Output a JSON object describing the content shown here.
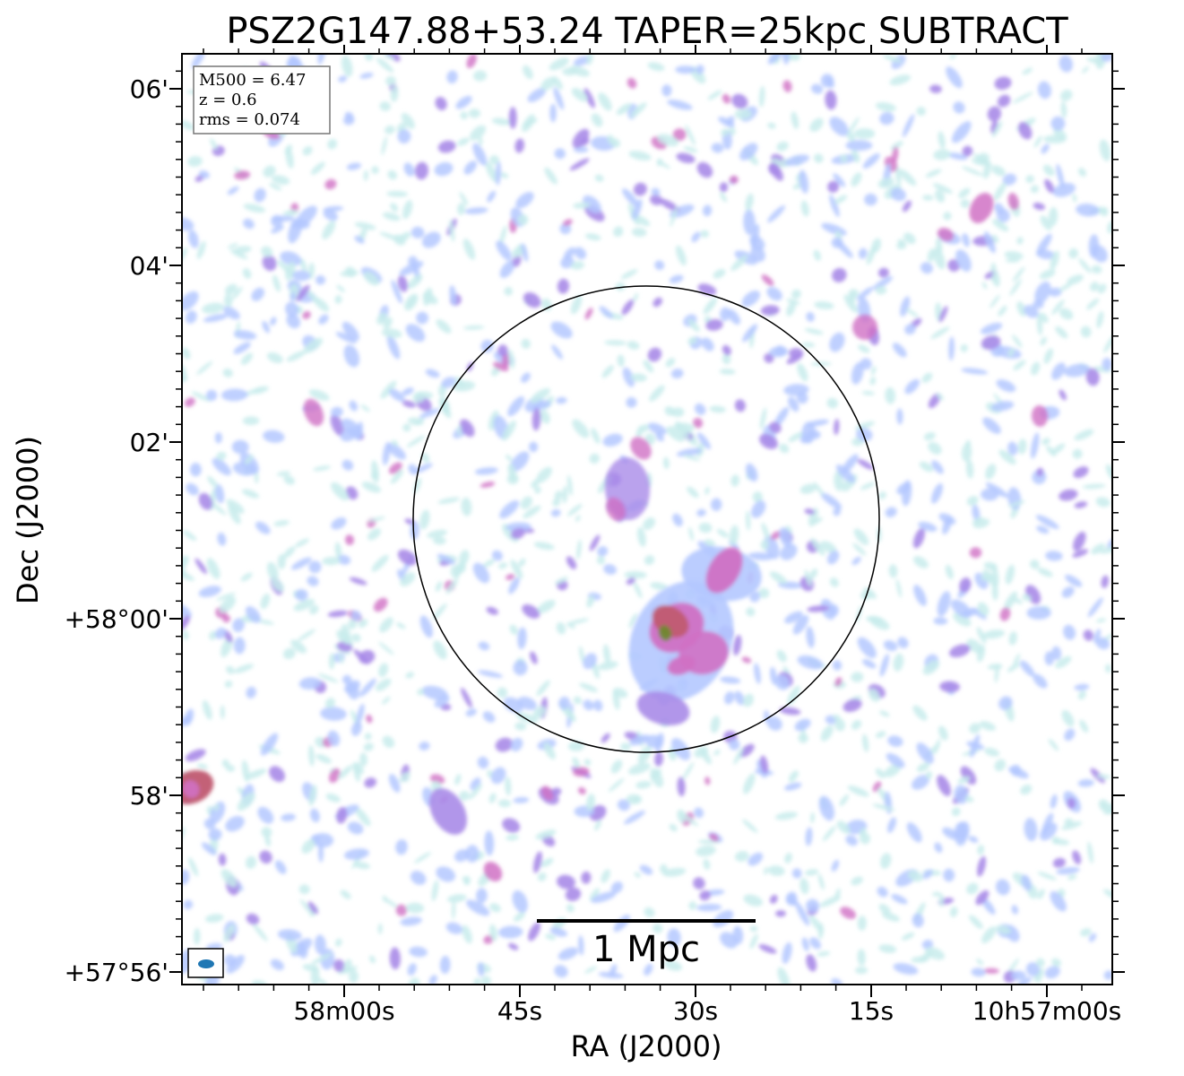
{
  "chart_data": {
    "type": "heatmap",
    "title": "PSZ2G147.88+53.24 TAPER=25kpc SUBTRACT",
    "xlabel": "RA (J2000)",
    "ylabel": "Dec (J2000)",
    "x_ticks": [
      "58m00s",
      "45s",
      "30s",
      "15s",
      "10h57m00s"
    ],
    "y_ticks": [
      "+57°56'",
      "58'",
      "+58°00'",
      "02'",
      "04'",
      "06'"
    ],
    "info_box": [
      "M500 = 6.47",
      "z = 0.6",
      "rms = 0.074"
    ],
    "scalebar_label": "1 Mpc",
    "colormap": [
      "#ffffff",
      "#c8ecec",
      "#b4c8ff",
      "#a98be8",
      "#d071c4",
      "#c05a70",
      "#6a8a2a"
    ],
    "circle": {
      "description": "R500 aperture centred on cluster"
    },
    "beam_color": "#1f77b4"
  }
}
